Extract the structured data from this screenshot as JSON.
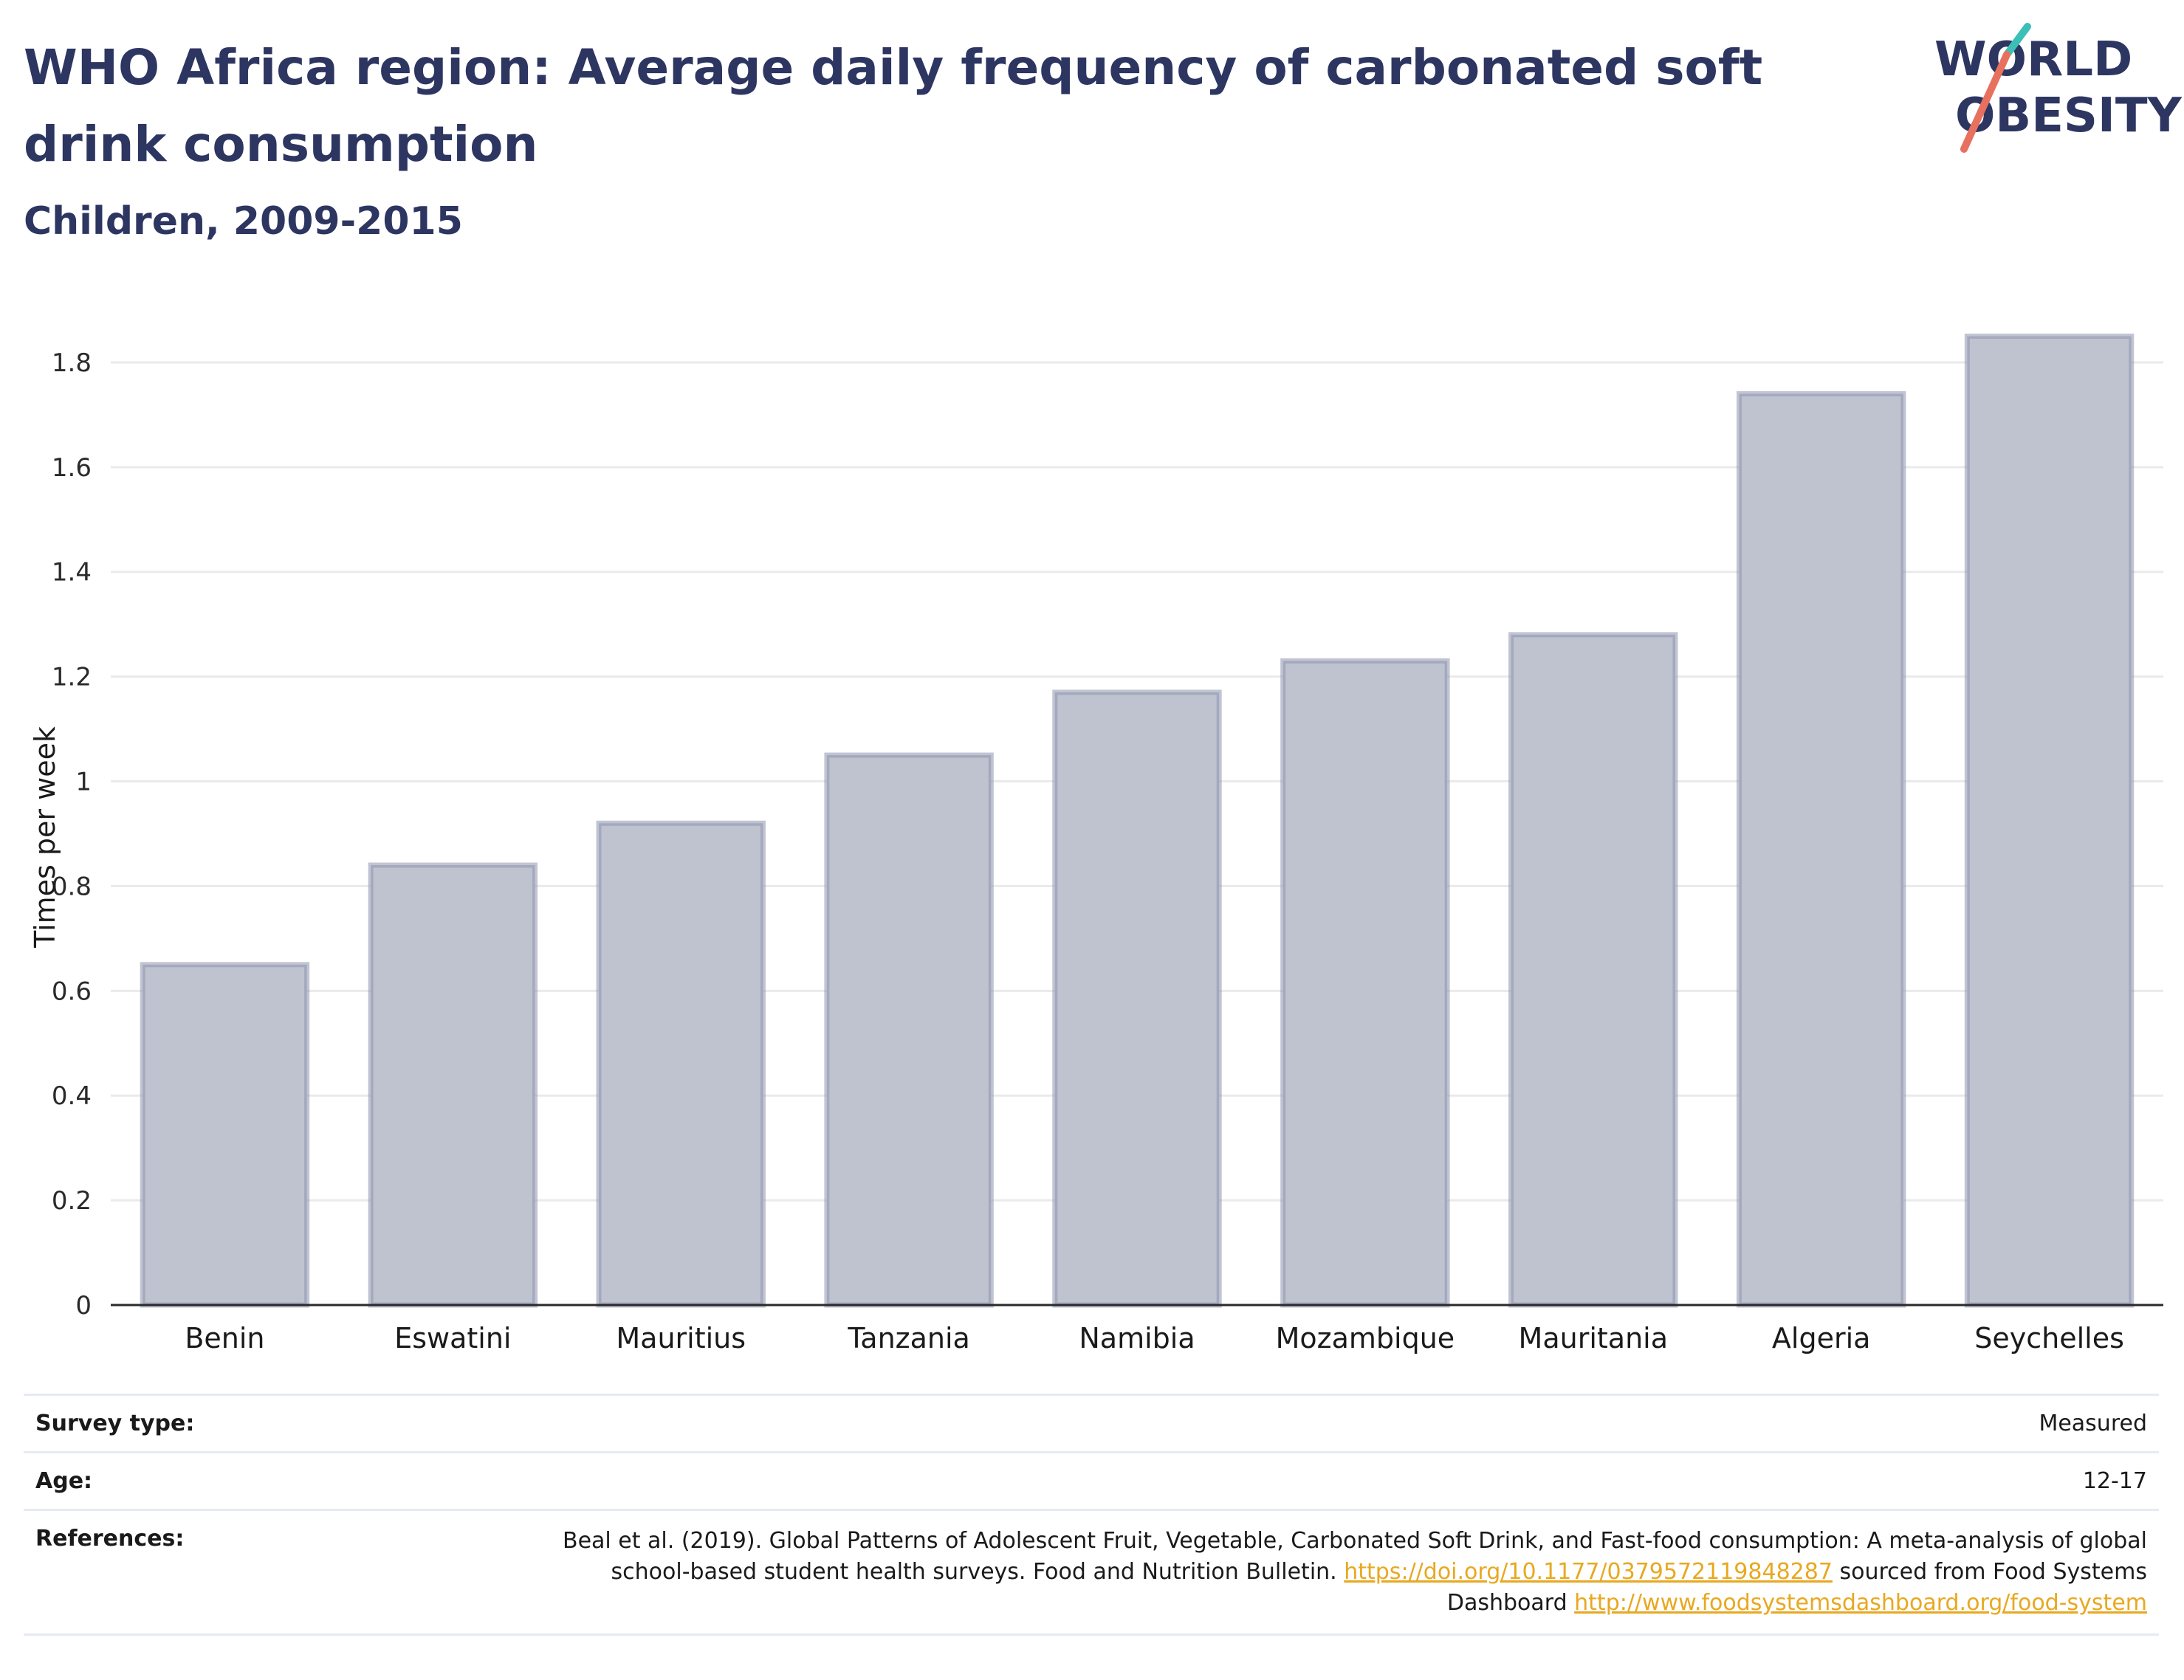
{
  "header": {
    "title": "WHO Africa region: Average daily frequency of carbonated soft drink consumption",
    "subtitle": "Children, 2009-2015"
  },
  "logo": {
    "line1": "WORLD",
    "line2": "OBESITY",
    "text_color": "#2d3561",
    "accent_teal": "#3bbfb6",
    "accent_coral": "#e8705e"
  },
  "chart_data": {
    "type": "bar",
    "categories": [
      "Benin",
      "Eswatini",
      "Mauritius",
      "Tanzania",
      "Namibia",
      "Mozambique",
      "Mauritania",
      "Algeria",
      "Seychelles"
    ],
    "values": [
      0.65,
      0.84,
      0.92,
      1.05,
      1.17,
      1.23,
      1.28,
      1.74,
      1.85
    ],
    "title": "WHO Africa region: Average daily frequency of carbonated soft drink consumption",
    "subtitle": "Children, 2009-2015",
    "xlabel": "",
    "ylabel": "Times per week",
    "ylim": [
      0,
      1.9
    ],
    "yticks": [
      0,
      0.2,
      0.4,
      0.6,
      0.8,
      1,
      1.2,
      1.4,
      1.6,
      1.8
    ],
    "ytick_labels": [
      "0",
      "0.2",
      "0.4",
      "0.6",
      "0.8",
      "1",
      "1.2",
      "1.4",
      "1.6",
      "1.8"
    ],
    "grid": true,
    "legend": "none",
    "bar_fill": "#bfc3d0",
    "bar_stroke": "#8e94ad",
    "grid_color": "#eaeaea",
    "axis_color": "#2a2a2a"
  },
  "info": {
    "survey_type_label": "Survey type:",
    "survey_type_value": "Measured",
    "age_label": "Age:",
    "age_value": "12-17",
    "references_label": "References:",
    "ref_text_1": "Beal et al. (2019). Global Patterns of Adolescent Fruit, Vegetable, Carbonated Soft Drink, and Fast-food consumption: A meta-analysis of global school-based student health surveys. Food and Nutrition Bulletin. ",
    "ref_link_1": "https://doi.org/10.1177/0379572119848287",
    "ref_text_2": " sourced from Food Systems Dashboard ",
    "ref_link_2": "http://www.foodsystemsdashboard.org/food-system"
  }
}
